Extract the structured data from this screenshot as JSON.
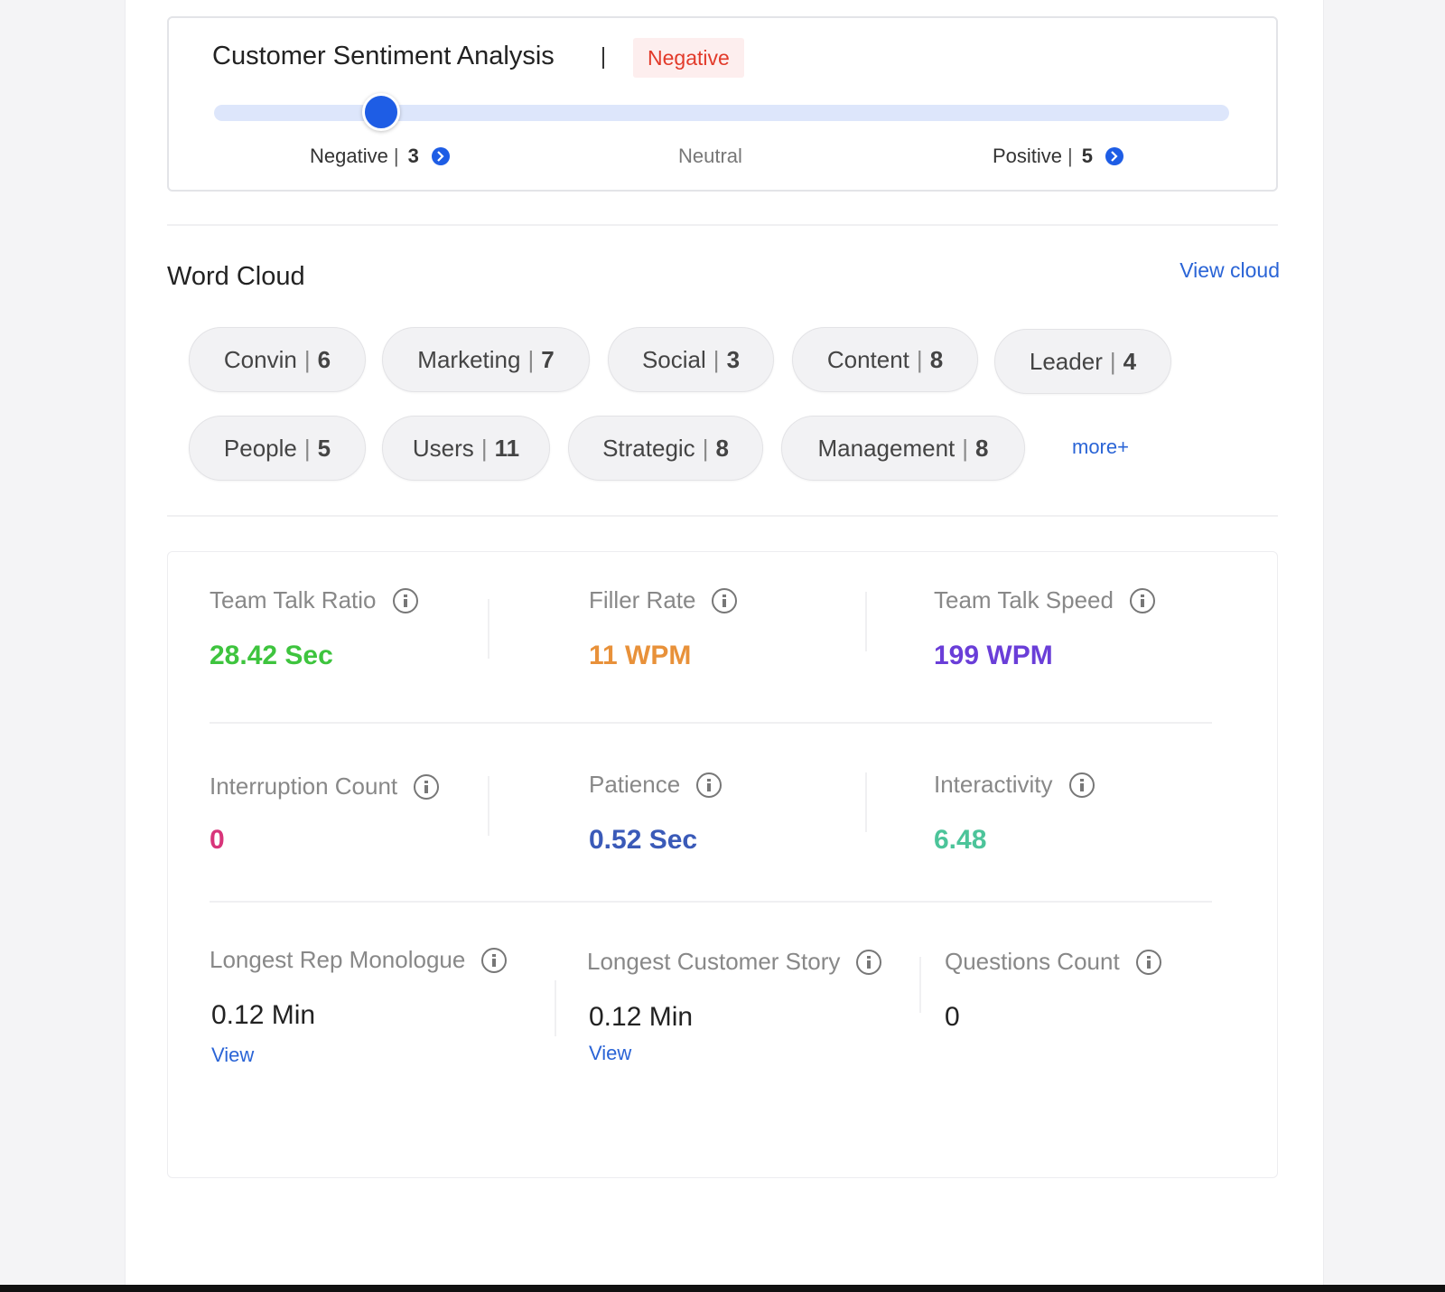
{
  "sentiment": {
    "title": "Customer Sentiment Analysis",
    "badge": "Negative",
    "badge_color": "#e23a2a",
    "level": 0.165,
    "negative": {
      "label": "Negative",
      "count": "3"
    },
    "neutral": {
      "label": "Neutral"
    },
    "positive": {
      "label": "Positive",
      "count": "5"
    },
    "separator": "|"
  },
  "word_cloud": {
    "title": "Word Cloud",
    "view_link": "View cloud",
    "more_link": "more+",
    "chips": [
      {
        "word": "Convin",
        "count": "6"
      },
      {
        "word": "Marketing",
        "count": "7"
      },
      {
        "word": "Social",
        "count": "3"
      },
      {
        "word": "Content",
        "count": "8"
      },
      {
        "word": "Leader",
        "count": "4"
      },
      {
        "word": "People",
        "count": "5"
      },
      {
        "word": "Users",
        "count": "11"
      },
      {
        "word": "Strategic",
        "count": "8"
      },
      {
        "word": "Management",
        "count": "8"
      }
    ]
  },
  "metrics": [
    {
      "label": "Team Talk Ratio",
      "value": "28.42 Sec",
      "color": "#3ec43e"
    },
    {
      "label": "Filler Rate",
      "value": "11 WPM",
      "color": "#e8913a"
    },
    {
      "label": "Team Talk Speed",
      "value": "199 WPM",
      "color": "#6a3ed8"
    },
    {
      "label": "Interruption Count",
      "value": "0",
      "color": "#d8357a"
    },
    {
      "label": "Patience",
      "value": "0.52 Sec",
      "color": "#3a5ab8"
    },
    {
      "label": "Interactivity",
      "value": "6.48",
      "color": "#4cc49a"
    },
    {
      "label": "Longest Rep Monologue",
      "value": "0.12 Min",
      "link": "View"
    },
    {
      "label": "Longest Customer Story",
      "value": "0.12 Min",
      "link": "View"
    },
    {
      "label": "Questions Count",
      "value": "0"
    }
  ]
}
